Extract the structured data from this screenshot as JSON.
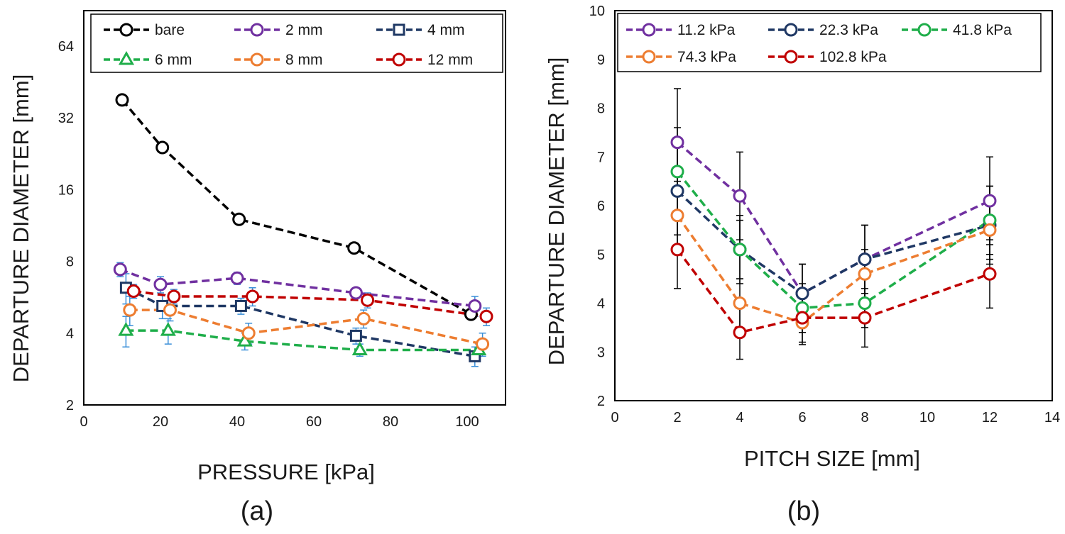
{
  "chart_data": [
    {
      "type": "line",
      "panel_label": "(a)",
      "xlabel": "PRESSURE [kPa]",
      "ylabel": "DEPARTURE DIAMETER [mm]",
      "xlim": [
        0,
        110
      ],
      "x_ticks": [
        0,
        20,
        40,
        60,
        80,
        100
      ],
      "ylim": [
        2,
        90
      ],
      "y_scale": "log2",
      "y_ticks": [
        2,
        4,
        8,
        16,
        32,
        64
      ],
      "legend_position": "top",
      "series": [
        {
          "name": "bare",
          "color": "#000000",
          "marker": "circle",
          "x": [
            10,
            20.5,
            40.5,
            70.5,
            101
          ],
          "y": [
            38,
            24,
            12,
            9.1,
            4.8
          ],
          "err": [
            0,
            0,
            0,
            0,
            0
          ]
        },
        {
          "name": "2 mm",
          "color": "#7030a0",
          "marker": "circle",
          "x": [
            9.5,
            20,
            40,
            71,
            102
          ],
          "y": [
            7.4,
            6.4,
            6.8,
            5.9,
            5.2
          ],
          "err": [
            0.5,
            0.5,
            0.4,
            0.3,
            0.5
          ]
        },
        {
          "name": "4 mm",
          "color": "#1f3864",
          "marker": "square",
          "x": [
            11,
            20.5,
            41,
            71,
            102
          ],
          "y": [
            6.2,
            5.2,
            5.2,
            3.9,
            3.2
          ],
          "err": [
            0.9,
            0.6,
            0.4,
            0.3,
            0.3
          ]
        },
        {
          "name": "6 mm",
          "color": "#1fae4a",
          "marker": "triangle",
          "x": [
            11,
            22,
            42,
            72,
            103
          ],
          "y": [
            4.1,
            4.1,
            3.7,
            3.4,
            3.4
          ],
          "err": [
            0.6,
            0.5,
            0.3,
            0.2,
            0.2
          ]
        },
        {
          "name": "8 mm",
          "color": "#ed7d31",
          "marker": "circle",
          "x": [
            12,
            22.5,
            43,
            73,
            104
          ],
          "y": [
            5.0,
            5.0,
            4.0,
            4.6,
            3.6
          ],
          "err": [
            0.7,
            0.5,
            0.4,
            0.4,
            0.4
          ]
        },
        {
          "name": "12 mm",
          "color": "#c00000",
          "marker": "circle",
          "x": [
            13,
            23.5,
            44,
            74,
            105
          ],
          "y": [
            6.0,
            5.7,
            5.7,
            5.5,
            4.7
          ],
          "err": [
            0.4,
            0.4,
            0.5,
            0.4,
            0.4
          ]
        }
      ]
    },
    {
      "type": "line",
      "panel_label": "(b)",
      "xlabel": "PITCH SIZE [mm]",
      "ylabel": "DEPARTURE DIAMETER [mm]",
      "xlim": [
        0,
        14
      ],
      "x_ticks": [
        0,
        2,
        4,
        6,
        8,
        10,
        12,
        14
      ],
      "ylim": [
        2,
        10
      ],
      "y_ticks": [
        2,
        3,
        4,
        5,
        6,
        7,
        8,
        9,
        10
      ],
      "legend_position": "top",
      "series": [
        {
          "name": "11.2 kPa",
          "color": "#7030a0",
          "marker": "circle",
          "x": [
            2,
            4,
            6,
            8,
            12
          ],
          "y": [
            7.3,
            6.2,
            4.2,
            4.9,
            6.1
          ],
          "err": [
            1.1,
            0.9,
            0.6,
            0.7,
            0.9
          ]
        },
        {
          "name": "22.3 kPa",
          "color": "#1f3864",
          "marker": "circle",
          "x": [
            2,
            4,
            6,
            8,
            12
          ],
          "y": [
            6.3,
            5.1,
            4.2,
            4.9,
            5.6
          ],
          "err": [
            0.9,
            0.7,
            0.6,
            0.7,
            0.8
          ]
        },
        {
          "name": "41.8 kPa",
          "color": "#1fae4a",
          "marker": "circle",
          "x": [
            2,
            4,
            6,
            8,
            12
          ],
          "y": [
            6.7,
            5.1,
            3.9,
            4.0,
            5.7
          ],
          "err": [
            0.9,
            0.6,
            0.5,
            0.5,
            0.7
          ]
        },
        {
          "name": "74.3 kPa",
          "color": "#ed7d31",
          "marker": "circle",
          "x": [
            2,
            4,
            6,
            8,
            12
          ],
          "y": [
            5.8,
            4.0,
            3.6,
            4.6,
            5.5
          ],
          "err": [
            0.7,
            0.5,
            0.4,
            0.5,
            0.6
          ]
        },
        {
          "name": "102.8 kPa",
          "color": "#c00000",
          "marker": "circle",
          "x": [
            2,
            4,
            6,
            8,
            12
          ],
          "y": [
            5.1,
            3.4,
            3.7,
            3.7,
            4.6
          ],
          "err": [
            0.8,
            0.55,
            0.55,
            0.6,
            0.7
          ]
        }
      ]
    }
  ]
}
